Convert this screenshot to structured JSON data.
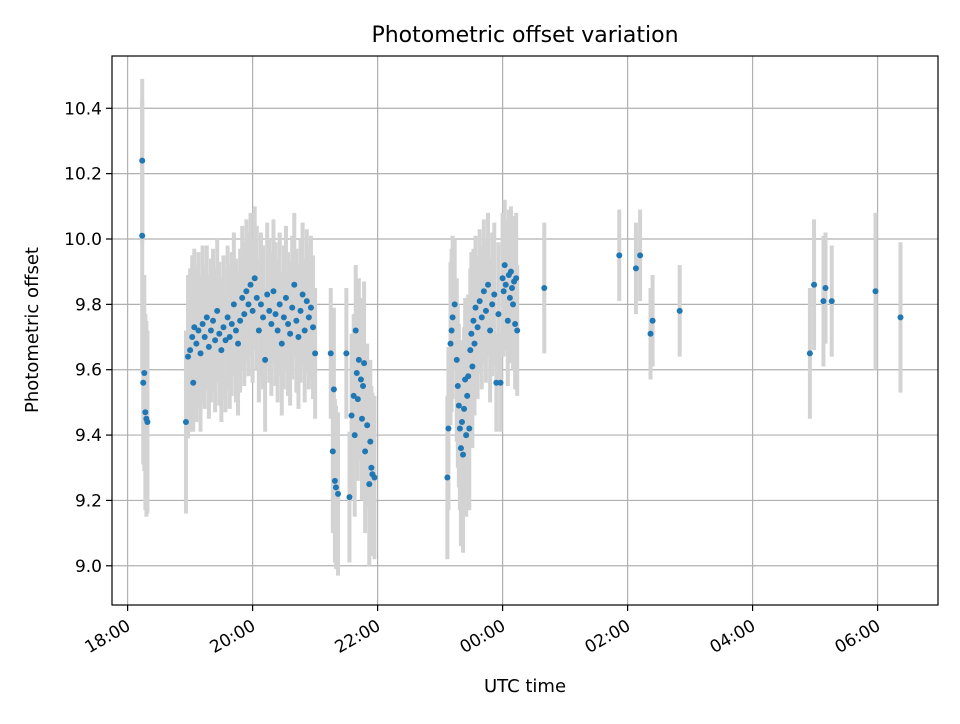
{
  "chart_data": {
    "type": "scatter",
    "title": "Photometric offset variation",
    "xlabel": "UTC time",
    "ylabel": "Photometric offset",
    "x_tick_labels": [
      "18:00",
      "20:00",
      "22:00",
      "00:00",
      "02:00",
      "04:00",
      "06:00"
    ],
    "x_ticks_hours": [
      18,
      20,
      22,
      24,
      26,
      28,
      30
    ],
    "x_tick_label_rotation": 30,
    "y_tick_values": [
      9.0,
      9.2,
      9.4,
      9.6,
      9.8,
      10.0,
      10.2,
      10.4
    ],
    "y_tick_labels": [
      "9.0",
      "9.2",
      "9.4",
      "9.6",
      "9.8",
      "10.0",
      "10.2",
      "10.4"
    ],
    "xlim": [
      "17:45",
      "06:58"
    ],
    "ylim": [
      8.88,
      10.56
    ],
    "grid": true,
    "error_bar_color": "#d3d3d3",
    "marker_color": "#1f77b4",
    "points": [
      [
        "18:14",
        10.24,
        0.25
      ],
      [
        "18:14",
        10.01,
        0.42
      ],
      [
        "18:15",
        9.56,
        0.25
      ],
      [
        "18:16",
        9.59,
        0.3
      ],
      [
        "18:17",
        9.47,
        0.3
      ],
      [
        "18:18",
        9.45,
        0.3
      ],
      [
        "18:19",
        9.44,
        0.28
      ],
      [
        "18:56",
        9.44,
        0.28
      ],
      [
        "18:58",
        9.64,
        0.25
      ],
      [
        "19:00",
        9.66,
        0.25
      ],
      [
        "19:02",
        9.7,
        0.25
      ],
      [
        "19:03",
        9.56,
        0.15
      ],
      [
        "19:04",
        9.73,
        0.24
      ],
      [
        "19:06",
        9.68,
        0.24
      ],
      [
        "19:08",
        9.72,
        0.24
      ],
      [
        "19:10",
        9.65,
        0.24
      ],
      [
        "19:12",
        9.74,
        0.24
      ],
      [
        "19:14",
        9.7,
        0.22
      ],
      [
        "19:16",
        9.76,
        0.22
      ],
      [
        "19:18",
        9.67,
        0.22
      ],
      [
        "19:20",
        9.72,
        0.22
      ],
      [
        "19:22",
        9.75,
        0.22
      ],
      [
        "19:24",
        9.69,
        0.22
      ],
      [
        "19:26",
        9.78,
        0.22
      ],
      [
        "19:28",
        9.71,
        0.22
      ],
      [
        "19:30",
        9.66,
        0.22
      ],
      [
        "19:32",
        9.73,
        0.22
      ],
      [
        "19:34",
        9.69,
        0.22
      ],
      [
        "19:36",
        9.76,
        0.22
      ],
      [
        "19:38",
        9.7,
        0.22
      ],
      [
        "19:40",
        9.74,
        0.22
      ],
      [
        "19:42",
        9.8,
        0.22
      ],
      [
        "19:44",
        9.72,
        0.22
      ],
      [
        "19:46",
        9.68,
        0.22
      ],
      [
        "19:48",
        9.75,
        0.22
      ],
      [
        "19:50",
        9.82,
        0.22
      ],
      [
        "19:52",
        9.77,
        0.22
      ],
      [
        "19:54",
        9.84,
        0.22
      ],
      [
        "19:56",
        9.8,
        0.22
      ],
      [
        "19:58",
        9.86,
        0.22
      ],
      [
        "20:00",
        9.78,
        0.22
      ],
      [
        "20:02",
        9.88,
        0.22
      ],
      [
        "20:04",
        9.82,
        0.22
      ],
      [
        "20:06",
        9.72,
        0.22
      ],
      [
        "20:08",
        9.8,
        0.22
      ],
      [
        "20:10",
        9.76,
        0.22
      ],
      [
        "20:12",
        9.63,
        0.22
      ],
      [
        "20:14",
        9.83,
        0.22
      ],
      [
        "20:16",
        9.78,
        0.22
      ],
      [
        "20:18",
        9.74,
        0.22
      ],
      [
        "20:20",
        9.84,
        0.22
      ],
      [
        "20:22",
        9.77,
        0.22
      ],
      [
        "20:24",
        9.72,
        0.22
      ],
      [
        "20:26",
        9.8,
        0.22
      ],
      [
        "20:28",
        9.68,
        0.22
      ],
      [
        "20:30",
        9.76,
        0.22
      ],
      [
        "20:32",
        9.82,
        0.22
      ],
      [
        "20:34",
        9.74,
        0.22
      ],
      [
        "20:36",
        9.71,
        0.22
      ],
      [
        "20:38",
        9.79,
        0.22
      ],
      [
        "20:40",
        9.86,
        0.22
      ],
      [
        "20:42",
        9.75,
        0.22
      ],
      [
        "20:44",
        9.7,
        0.22
      ],
      [
        "20:46",
        9.78,
        0.22
      ],
      [
        "20:48",
        9.83,
        0.22
      ],
      [
        "20:50",
        9.72,
        0.22
      ],
      [
        "20:52",
        9.81,
        0.22
      ],
      [
        "20:54",
        9.76,
        0.22
      ],
      [
        "20:56",
        9.79,
        0.22
      ],
      [
        "20:58",
        9.73,
        0.22
      ],
      [
        "21:00",
        9.65,
        0.2
      ],
      [
        "21:15",
        9.65,
        0.2
      ],
      [
        "21:17",
        9.35,
        0.25
      ],
      [
        "21:18",
        9.54,
        0.25
      ],
      [
        "21:19",
        9.26,
        0.25
      ],
      [
        "21:20",
        9.24,
        0.25
      ],
      [
        "21:22",
        9.22,
        0.25
      ],
      [
        "21:30",
        9.65,
        0.2
      ],
      [
        "21:33",
        9.21,
        0.2
      ],
      [
        "21:35",
        9.46,
        0.25
      ],
      [
        "21:37",
        9.52,
        0.25
      ],
      [
        "21:38",
        9.4,
        0.25
      ],
      [
        "21:39",
        9.72,
        0.2
      ],
      [
        "21:40",
        9.59,
        0.25
      ],
      [
        "21:41",
        9.51,
        0.25
      ],
      [
        "21:42",
        9.63,
        0.25
      ],
      [
        "21:44",
        9.57,
        0.25
      ],
      [
        "21:45",
        9.45,
        0.25
      ],
      [
        "21:46",
        9.55,
        0.25
      ],
      [
        "21:47",
        9.62,
        0.25
      ],
      [
        "21:48",
        9.35,
        0.25
      ],
      [
        "21:50",
        9.43,
        0.25
      ],
      [
        "21:52",
        9.25,
        0.25
      ],
      [
        "21:53",
        9.38,
        0.25
      ],
      [
        "21:54",
        9.3,
        0.25
      ],
      [
        "21:55",
        9.28,
        0.25
      ],
      [
        "21:57",
        9.27,
        0.25
      ],
      [
        "23:07",
        9.27,
        0.25
      ],
      [
        "23:08",
        9.42,
        0.25
      ],
      [
        "23:10",
        9.68,
        0.25
      ],
      [
        "23:11",
        9.72,
        0.25
      ],
      [
        "23:12",
        9.76,
        0.25
      ],
      [
        "23:14",
        9.8,
        0.2
      ],
      [
        "23:16",
        9.63,
        0.25
      ],
      [
        "23:17",
        9.55,
        0.25
      ],
      [
        "23:18",
        9.49,
        0.25
      ],
      [
        "23:19",
        9.42,
        0.25
      ],
      [
        "23:20",
        9.36,
        0.3
      ],
      [
        "23:21",
        9.44,
        0.25
      ],
      [
        "23:22",
        9.34,
        0.3
      ],
      [
        "23:23",
        9.48,
        0.25
      ],
      [
        "23:24",
        9.57,
        0.25
      ],
      [
        "23:25",
        9.4,
        0.25
      ],
      [
        "23:26",
        9.52,
        0.25
      ],
      [
        "23:27",
        9.58,
        0.25
      ],
      [
        "23:28",
        9.42,
        0.25
      ],
      [
        "23:29",
        9.66,
        0.25
      ],
      [
        "23:30",
        9.71,
        0.25
      ],
      [
        "23:31",
        9.61,
        0.25
      ],
      [
        "23:32",
        9.75,
        0.22
      ],
      [
        "23:33",
        9.68,
        0.22
      ],
      [
        "23:34",
        9.79,
        0.22
      ],
      [
        "23:36",
        9.73,
        0.22
      ],
      [
        "23:38",
        9.81,
        0.22
      ],
      [
        "23:40",
        9.76,
        0.22
      ],
      [
        "23:42",
        9.84,
        0.22
      ],
      [
        "23:44",
        9.78,
        0.22
      ],
      [
        "23:46",
        9.86,
        0.22
      ],
      [
        "23:48",
        9.72,
        0.22
      ],
      [
        "23:50",
        9.8,
        0.22
      ],
      [
        "23:52",
        9.83,
        0.22
      ],
      [
        "23:54",
        9.56,
        0.15
      ],
      [
        "23:56",
        9.77,
        0.22
      ],
      [
        "23:58",
        9.56,
        0.15
      ],
      [
        "00:00",
        9.88,
        0.2
      ],
      [
        "00:01",
        9.84,
        0.2
      ],
      [
        "00:02",
        9.92,
        0.2
      ],
      [
        "00:03",
        9.86,
        0.2
      ],
      [
        "00:05",
        9.75,
        0.2
      ],
      [
        "00:06",
        9.89,
        0.2
      ],
      [
        "00:07",
        9.82,
        0.2
      ],
      [
        "00:08",
        9.9,
        0.2
      ],
      [
        "00:09",
        9.85,
        0.2
      ],
      [
        "00:10",
        9.8,
        0.2
      ],
      [
        "00:11",
        9.87,
        0.2
      ],
      [
        "00:12",
        9.74,
        0.2
      ],
      [
        "00:13",
        9.88,
        0.2
      ],
      [
        "00:14",
        9.72,
        0.2
      ],
      [
        "00:40",
        9.85,
        0.2
      ],
      [
        "01:52",
        9.95,
        0.14
      ],
      [
        "02:08",
        9.91,
        0.14
      ],
      [
        "02:12",
        9.95,
        0.14
      ],
      [
        "02:22",
        9.71,
        0.14
      ],
      [
        "02:24",
        9.75,
        0.14
      ],
      [
        "02:50",
        9.78,
        0.14
      ],
      [
        "04:55",
        9.65,
        0.2
      ],
      [
        "04:59",
        9.86,
        0.2
      ],
      [
        "05:08",
        9.81,
        0.2
      ],
      [
        "05:10",
        9.85,
        0.17
      ],
      [
        "05:16",
        9.81,
        0.17
      ],
      [
        "05:58",
        9.84,
        0.24
      ],
      [
        "06:22",
        9.76,
        0.23
      ]
    ]
  }
}
